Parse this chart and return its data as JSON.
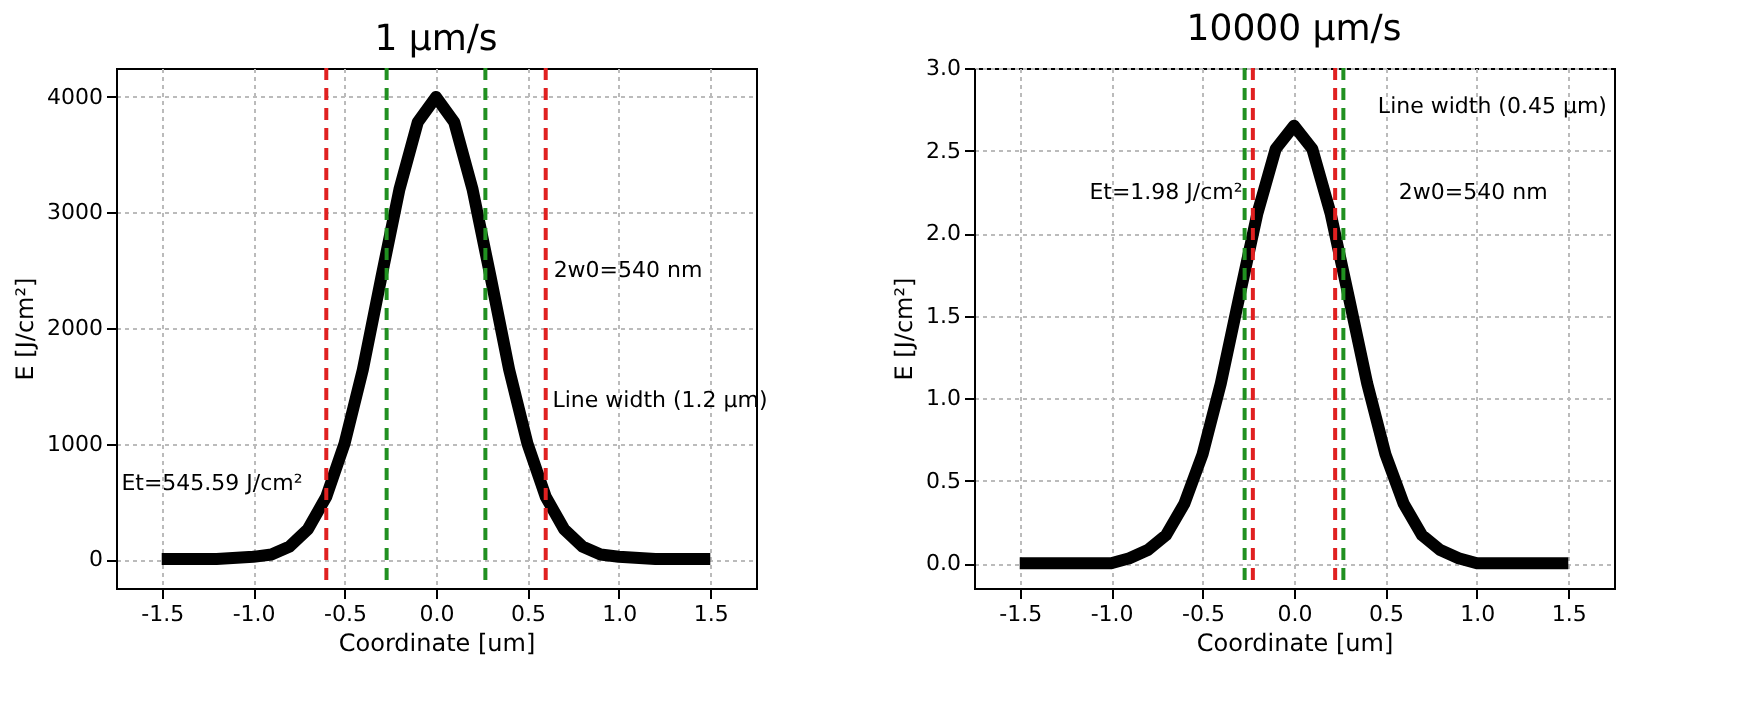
{
  "chart_data": [
    {
      "type": "line",
      "title": "1 μm/s",
      "xlabel": "Coordinate [um]",
      "ylabel": "E [J/cm²]",
      "x": [
        -1.5,
        -1.2,
        -1.0,
        -0.9,
        -0.8,
        -0.7,
        -0.6,
        -0.5,
        -0.4,
        -0.3,
        -0.2,
        -0.1,
        0,
        0.1,
        0.2,
        0.3,
        0.4,
        0.5,
        0.6,
        0.7,
        0.8,
        0.9,
        1.0,
        1.2,
        1.5
      ],
      "series": [
        {
          "color": "#000000",
          "values": [
            0,
            0,
            20,
            40,
            110,
            260,
            540,
            1000,
            1640,
            2430,
            3200,
            3780,
            4000,
            3780,
            3200,
            2430,
            1640,
            1000,
            540,
            260,
            110,
            40,
            20,
            0,
            0
          ]
        }
      ],
      "xlim": [
        -1.75,
        1.75
      ],
      "xticks": [
        {
          "value": -1.5,
          "label": "-1.5"
        },
        {
          "value": -1,
          "label": "-1.0"
        },
        {
          "value": -0.5,
          "label": "-0.5"
        },
        {
          "value": 0,
          "label": "0.0"
        },
        {
          "value": 0.5,
          "label": "0.5"
        },
        {
          "value": 1,
          "label": "1.0"
        },
        {
          "value": 1.5,
          "label": "1.5"
        }
      ],
      "ylim": [
        -250,
        4250
      ],
      "yticks": [
        0,
        1000,
        2000,
        3000,
        4000
      ],
      "grid": true,
      "marker": "none",
      "line_style": "solid",
      "ref_lines": [
        {
          "axis": "x",
          "value": -0.6,
          "color": "#e02020",
          "line_style": "dashed"
        },
        {
          "axis": "x",
          "value": 0.6,
          "color": "#e02020",
          "line_style": "dashed"
        },
        {
          "axis": "x",
          "value": -0.27,
          "color": "#209020",
          "line_style": "dashed"
        },
        {
          "axis": "x",
          "value": 0.27,
          "color": "#209020",
          "line_style": "dashed"
        }
      ],
      "annotations": [
        "Et=545.59 J/cm²",
        "2w0=540 nm",
        "Line width (1.2 μm)"
      ]
    },
    {
      "type": "line",
      "title": "10000 μm/s",
      "xlabel": "Coordinate [um]",
      "ylabel": "E [J/cm²]",
      "x": [
        -1.5,
        -1.2,
        -1.0,
        -0.9,
        -0.8,
        -0.7,
        -0.6,
        -0.5,
        -0.4,
        -0.3,
        -0.2,
        -0.1,
        0,
        0.1,
        0.2,
        0.3,
        0.4,
        0.5,
        0.6,
        0.7,
        0.8,
        0.9,
        1.0,
        1.2,
        1.5
      ],
      "series": [
        {
          "color": "#000000",
          "values": [
            0,
            0,
            0,
            0.03,
            0.08,
            0.17,
            0.36,
            0.66,
            1.09,
            1.61,
            2.12,
            2.51,
            2.65,
            2.51,
            2.12,
            1.61,
            1.09,
            0.66,
            0.36,
            0.17,
            0.08,
            0.03,
            0,
            0,
            0
          ]
        }
      ],
      "xlim": [
        -1.75,
        1.75
      ],
      "xticks": [
        {
          "value": -1.5,
          "label": "-1.5"
        },
        {
          "value": -1,
          "label": "-1.0"
        },
        {
          "value": -0.5,
          "label": "-0.5"
        },
        {
          "value": 0,
          "label": "0.0"
        },
        {
          "value": 0.5,
          "label": "0.5"
        },
        {
          "value": 1,
          "label": "1.0"
        },
        {
          "value": 1.5,
          "label": "1.5"
        }
      ],
      "ylim": [
        -0.15,
        3.0
      ],
      "yticks": [
        {
          "value": 0,
          "label": "0.0"
        },
        {
          "value": 0.5,
          "label": "0.5"
        },
        {
          "value": 1,
          "label": "1.0"
        },
        {
          "value": 1.5,
          "label": "1.5"
        },
        {
          "value": 2,
          "label": "2.0"
        },
        {
          "value": 2.5,
          "label": "2.5"
        },
        {
          "value": 3,
          "label": "3.0"
        }
      ],
      "grid": true,
      "marker": "none",
      "line_style": "solid",
      "ref_lines": [
        {
          "axis": "x",
          "value": -0.225,
          "color": "#e02020",
          "line_style": "dashed"
        },
        {
          "axis": "x",
          "value": 0.225,
          "color": "#e02020",
          "line_style": "dashed"
        },
        {
          "axis": "x",
          "value": -0.27,
          "color": "#209020",
          "line_style": "dashed"
        },
        {
          "axis": "x",
          "value": 0.27,
          "color": "#209020",
          "line_style": "dashed"
        }
      ],
      "annotations": [
        "Et=1.98 J/cm²",
        "2w0=540 nm",
        "Line width (0.45 μm)"
      ]
    }
  ]
}
